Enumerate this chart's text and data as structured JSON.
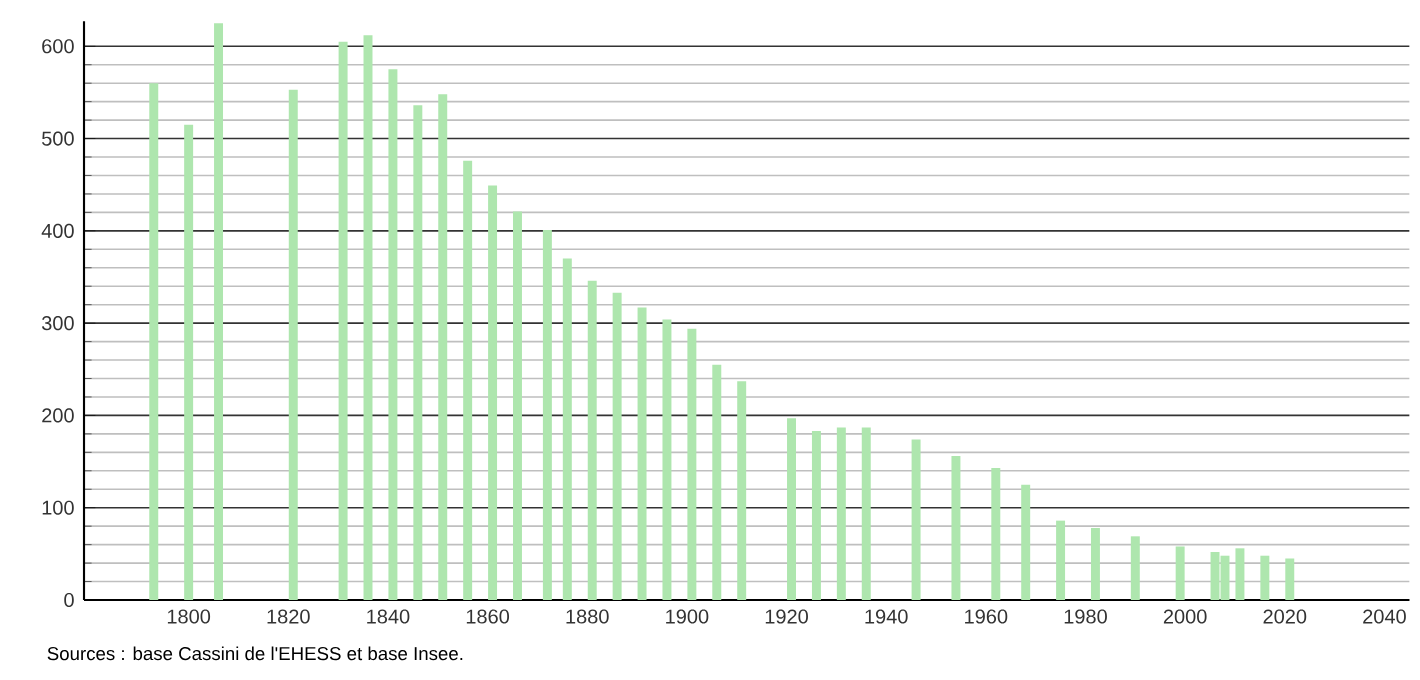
{
  "chart_data": {
    "type": "bar",
    "color": "#aee6ae",
    "x": [
      1793,
      1800,
      1806,
      1821,
      1831,
      1836,
      1841,
      1846,
      1851,
      1856,
      1861,
      1866,
      1872,
      1876,
      1881,
      1886,
      1891,
      1896,
      1901,
      1906,
      1911,
      1921,
      1926,
      1931,
      1936,
      1946,
      1954,
      1962,
      1968,
      1975,
      1982,
      1990,
      1999,
      2006,
      2008,
      2011,
      2016,
      2021
    ],
    "values": [
      560,
      515,
      625,
      553,
      605,
      612,
      575,
      536,
      548,
      476,
      449,
      421,
      401,
      370,
      346,
      333,
      317,
      304,
      294,
      255,
      237,
      197,
      183,
      187,
      187,
      174,
      156,
      143,
      125,
      86,
      78,
      69,
      58,
      52,
      48,
      56,
      48,
      45
    ],
    "xlim": [
      1779,
      2045
    ],
    "ylim": [
      0,
      627
    ],
    "xticks": [
      1800,
      1820,
      1840,
      1860,
      1880,
      1900,
      1920,
      1940,
      1960,
      1980,
      2000,
      2020,
      2040
    ],
    "yticks": [
      0,
      100,
      200,
      300,
      400,
      500,
      600
    ],
    "grid": true,
    "annotations": [
      "Sources : base Cassini de l'EHESS et base Insee."
    ]
  }
}
